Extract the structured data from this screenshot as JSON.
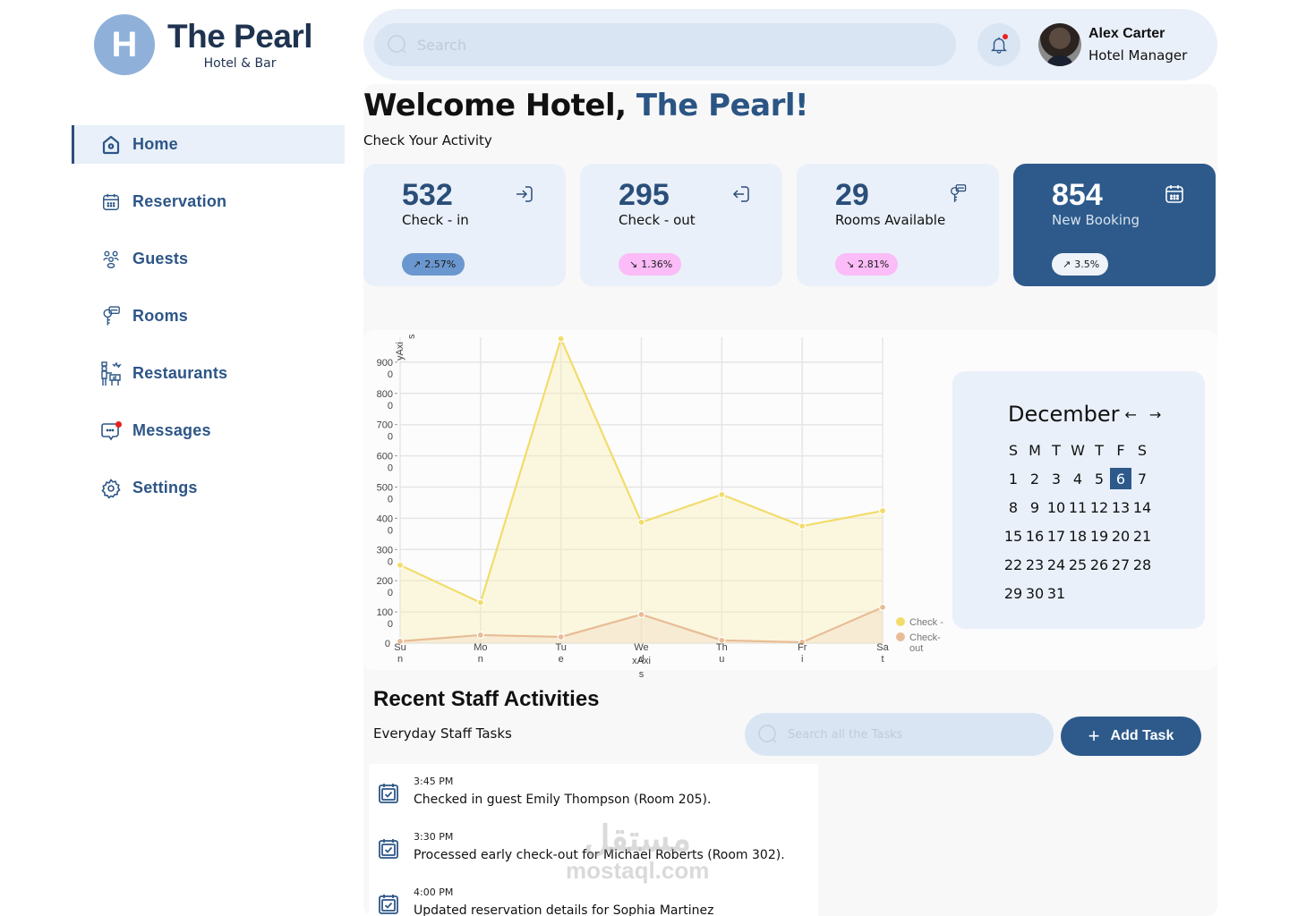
{
  "brand": {
    "logo_letter": "H",
    "name": "The Pearl",
    "tagline": "Hotel & Bar"
  },
  "sidebar": {
    "items": [
      {
        "label": "Home",
        "icon": "home-icon",
        "active": true
      },
      {
        "label": "Reservation",
        "icon": "calendar-icon"
      },
      {
        "label": "Guests",
        "icon": "guests-icon"
      },
      {
        "label": "Rooms",
        "icon": "room-key-icon"
      },
      {
        "label": "Restaurants",
        "icon": "chef-icon"
      },
      {
        "label": "Messages",
        "icon": "chat-icon",
        "has_notification": true
      },
      {
        "label": "Settings",
        "icon": "gear-icon"
      }
    ]
  },
  "header": {
    "search_placeholder": "Search",
    "notifications_icon": "bell-icon",
    "user": {
      "name": "Alex Carter",
      "role": "Hotel Manager"
    }
  },
  "main": {
    "welcome_prefix": "Welcome Hotel, ",
    "welcome_brand": "The Pearl!",
    "subtitle": "Check Your Activity",
    "stats": [
      {
        "value": "532",
        "label": "Check - in",
        "icon": "sign-in-icon",
        "change": "2.57%",
        "trend": "up"
      },
      {
        "value": "295",
        "label": "Check - out",
        "icon": "sign-out-icon",
        "change": "1.36%",
        "trend": "down"
      },
      {
        "value": "29",
        "label": "Rooms Available",
        "icon": "room-key-icon",
        "change": "2.81%",
        "trend": "down"
      },
      {
        "value": "854",
        "label": "New Booking",
        "icon": "calendar-icon",
        "change": "3.5%",
        "trend": "up"
      }
    ]
  },
  "chart_data": {
    "type": "area",
    "title": "",
    "xlabel": "xAxis",
    "ylabel": "yAxis",
    "categories": [
      "Sun",
      "Mon",
      "Tue",
      "Wed",
      "Thu",
      "Fri",
      "Sat"
    ],
    "series": [
      {
        "name": "Check - in",
        "color": "#f2dc6b",
        "values": [
          2500,
          1300,
          9750,
          3870,
          4760,
          3750,
          4240
        ]
      },
      {
        "name": "Check-out",
        "color": "#e8bc96",
        "values": [
          60,
          260,
          200,
          920,
          90,
          30,
          1150
        ]
      }
    ],
    "ylim": [
      0,
      9750
    ],
    "yticks": [
      0,
      1000,
      2000,
      3000,
      4000,
      5000,
      6000,
      7000,
      8000,
      9000
    ],
    "grid": true,
    "legend_position": "right-bottom"
  },
  "calendar": {
    "month": "December",
    "prev_label": "←",
    "next_label": "→",
    "weekdays": [
      "S",
      "M",
      "T",
      "W",
      "T",
      "F",
      "S"
    ],
    "days": [
      1,
      2,
      3,
      4,
      5,
      6,
      7,
      8,
      9,
      10,
      11,
      12,
      13,
      14,
      15,
      16,
      17,
      18,
      19,
      20,
      21,
      22,
      23,
      24,
      25,
      26,
      27,
      28,
      29,
      30,
      31
    ],
    "selected": 6
  },
  "recent": {
    "title": "Recent Staff Activities",
    "subtitle": "Everyday Staff Tasks",
    "search_placeholder": "Search all the Tasks",
    "add_task_label": "Add Task",
    "tasks": [
      {
        "time": "3:45 PM",
        "text": "Checked in guest Emily Thompson (Room 205)."
      },
      {
        "time": "3:30 PM",
        "text": "Processed early check-out for Michael Roberts (Room 302)."
      },
      {
        "time": "4:00 PM",
        "text": "Updated reservation details for Sophia Martinez"
      }
    ]
  },
  "watermark": {
    "arabic": "مستقل",
    "latin": "mostaql.com"
  }
}
